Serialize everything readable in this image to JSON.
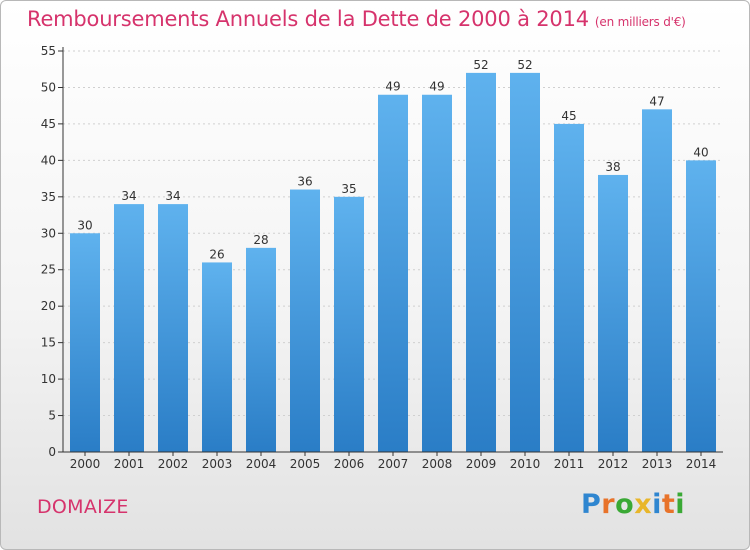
{
  "title": "Remboursements Annuels de la Dette de 2000 à 2014",
  "unit": "(en milliers d'€)",
  "commune": "DOMAIZE",
  "logo": {
    "letters": [
      "P",
      "r",
      "o",
      "x",
      "i",
      "t",
      "i"
    ]
  },
  "colors": {
    "title": "#d6336c",
    "bar_top": "#5fb2ee",
    "bar_bottom": "#2a7dc6",
    "axis": "#333333",
    "grid": "#d0d0d0"
  },
  "chart_data": {
    "type": "bar",
    "title": "Remboursements Annuels de la Dette de 2000 à 2014",
    "xlabel": "",
    "ylabel": "",
    "categories": [
      "2000",
      "2001",
      "2002",
      "2003",
      "2004",
      "2005",
      "2006",
      "2007",
      "2008",
      "2009",
      "2010",
      "2011",
      "2012",
      "2013",
      "2014"
    ],
    "values": [
      30,
      34,
      34,
      26,
      28,
      36,
      35,
      49,
      49,
      52,
      52,
      45,
      38,
      47,
      40
    ],
    "ylim": [
      0,
      55
    ],
    "yticks": [
      0,
      5,
      10,
      15,
      20,
      25,
      30,
      35,
      40,
      45,
      50,
      55
    ],
    "grid": true,
    "data_labels": true
  }
}
